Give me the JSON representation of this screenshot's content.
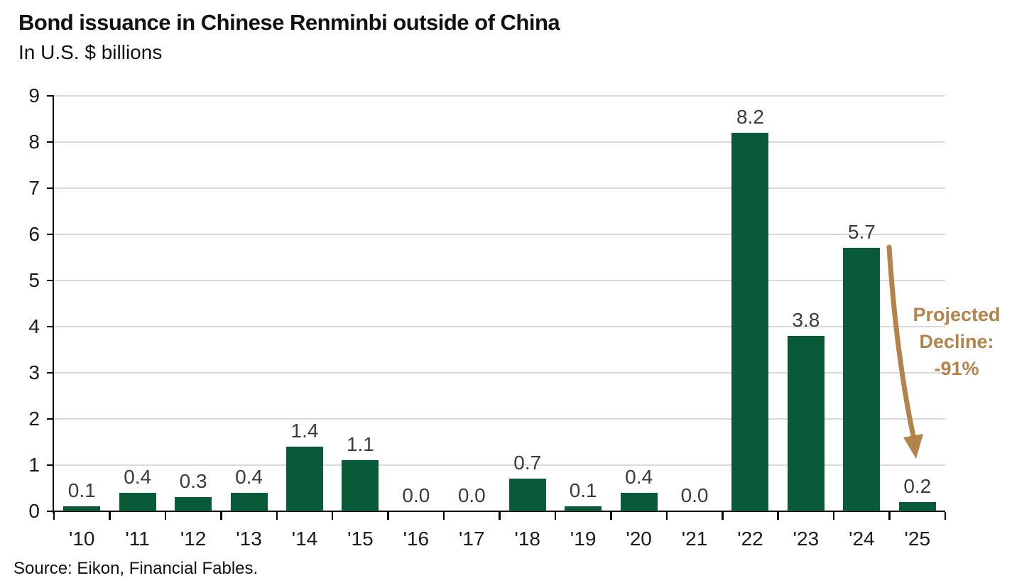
{
  "chart_data": {
    "type": "bar",
    "title": "Bond issuance in Chinese Renminbi outside of China",
    "subtitle": "In U.S. $ billions",
    "source": "Source: Eikon, Financial Fables.",
    "categories": [
      "'10",
      "'11",
      "'12",
      "'13",
      "'14",
      "'15",
      "'16",
      "'17",
      "'18",
      "'19",
      "'20",
      "'21",
      "'22",
      "'23",
      "'24",
      "'25"
    ],
    "values": [
      0.1,
      0.4,
      0.3,
      0.4,
      1.4,
      1.1,
      0.0,
      0.0,
      0.7,
      0.1,
      0.4,
      0.0,
      8.2,
      3.8,
      5.7,
      0.2
    ],
    "value_labels": [
      "0.1",
      "0.4",
      "0.3",
      "0.4",
      "1.4",
      "1.1",
      "0.0",
      "0.0",
      "0.7",
      "0.1",
      "0.4",
      "0.0",
      "8.2",
      "3.8",
      "5.7",
      "0.2"
    ],
    "ylim": [
      0,
      9
    ],
    "yticks": [
      0,
      1,
      2,
      3,
      4,
      5,
      6,
      7,
      8,
      9
    ],
    "grid": true,
    "legend": "none",
    "bar_color": "#085a38",
    "gridline_color": "#d9d9d9",
    "axis_color": "#000000",
    "annotation": {
      "lines": [
        "Projected",
        "Decline:",
        "-91%"
      ],
      "color": "#b4834a",
      "arrow_direction": "down"
    }
  }
}
